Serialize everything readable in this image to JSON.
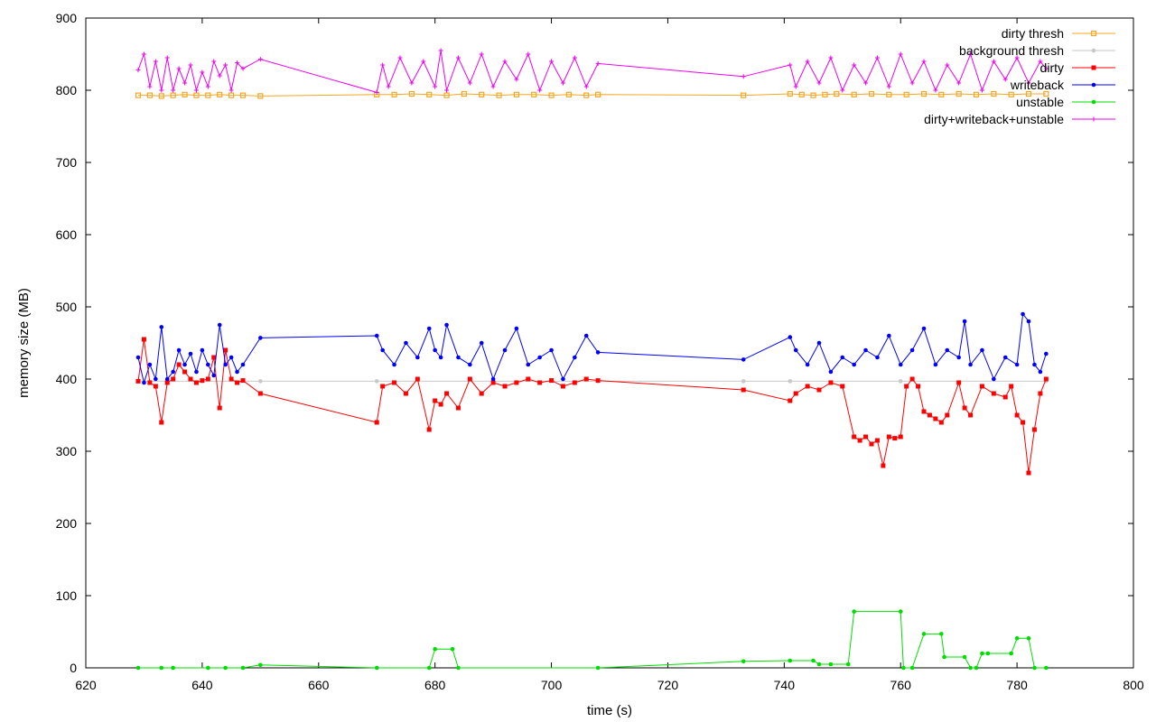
{
  "chart_data": {
    "type": "line",
    "xlabel": "time (s)",
    "ylabel": "memory size (MB)",
    "xlim": [
      620,
      800
    ],
    "ylim": [
      0,
      900
    ],
    "xticks": [
      620,
      640,
      660,
      680,
      700,
      720,
      740,
      760,
      780,
      800
    ],
    "yticks": [
      0,
      100,
      200,
      300,
      400,
      500,
      600,
      700,
      800,
      900
    ],
    "grid": false,
    "legend_position": "top-right",
    "series": [
      {
        "name": "dirty thresh",
        "color": "#f5a623",
        "marker": "square-open",
        "x": [
          629,
          631,
          633,
          635,
          637,
          639,
          641,
          643,
          645,
          647,
          650,
          670,
          673,
          676,
          679,
          682,
          685,
          688,
          691,
          694,
          697,
          700,
          703,
          706,
          708,
          733,
          741,
          743,
          745,
          747,
          749,
          752,
          755,
          758,
          761,
          764,
          767,
          770,
          773,
          776,
          779,
          782,
          785
        ],
        "y": [
          793,
          793,
          792,
          793,
          794,
          793,
          793,
          794,
          793,
          793,
          792,
          794,
          794,
          795,
          794,
          793,
          795,
          794,
          793,
          794,
          794,
          793,
          794,
          793,
          794,
          793,
          795,
          794,
          793,
          794,
          795,
          794,
          795,
          794,
          794,
          795,
          794,
          795,
          794,
          795,
          794,
          795,
          795
        ]
      },
      {
        "name": "background thresh",
        "color": "#c8c8c8",
        "marker": "dot",
        "x": [
          629,
          640,
          650,
          670,
          690,
          708,
          733,
          741,
          760,
          785
        ],
        "y": [
          397,
          397,
          397,
          397,
          397,
          397,
          397,
          397,
          397,
          397
        ]
      },
      {
        "name": "dirty",
        "color": "#ff0000",
        "marker": "square",
        "x": [
          629,
          630,
          631,
          632,
          633,
          634,
          635,
          636,
          637,
          638,
          639,
          640,
          641,
          642,
          643,
          644,
          645,
          646,
          647,
          650,
          670,
          671,
          673,
          675,
          677,
          679,
          680,
          681,
          682,
          684,
          686,
          688,
          690,
          692,
          694,
          696,
          698,
          700,
          702,
          704,
          706,
          708,
          733,
          741,
          742,
          744,
          746,
          748,
          750,
          752,
          753,
          754,
          755,
          756,
          757,
          758,
          759,
          760,
          761,
          762,
          763,
          764,
          765,
          766,
          767,
          768,
          770,
          771,
          772,
          774,
          776,
          778,
          779,
          780,
          781,
          782,
          783,
          784,
          785
        ],
        "y": [
          397,
          455,
          395,
          390,
          340,
          395,
          400,
          420,
          410,
          400,
          395,
          398,
          400,
          430,
          360,
          440,
          400,
          395,
          398,
          380,
          340,
          390,
          395,
          380,
          400,
          330,
          370,
          365,
          380,
          360,
          400,
          380,
          395,
          390,
          395,
          400,
          395,
          398,
          390,
          395,
          400,
          398,
          385,
          370,
          380,
          390,
          385,
          395,
          390,
          320,
          315,
          320,
          310,
          315,
          280,
          320,
          318,
          320,
          390,
          400,
          390,
          355,
          350,
          345,
          340,
          350,
          395,
          360,
          350,
          390,
          380,
          375,
          390,
          350,
          340,
          270,
          330,
          380,
          400
        ]
      },
      {
        "name": "writeback",
        "color": "#0000ff",
        "marker": "dot",
        "x": [
          629,
          630,
          631,
          632,
          633,
          634,
          635,
          636,
          637,
          638,
          639,
          640,
          641,
          642,
          643,
          644,
          645,
          646,
          647,
          650,
          670,
          671,
          673,
          675,
          677,
          679,
          680,
          681,
          682,
          684,
          686,
          688,
          690,
          692,
          694,
          696,
          698,
          700,
          702,
          704,
          706,
          708,
          733,
          741,
          742,
          744,
          746,
          748,
          750,
          752,
          754,
          756,
          758,
          760,
          762,
          764,
          766,
          768,
          770,
          771,
          772,
          774,
          776,
          778,
          780,
          781,
          782,
          783,
          784,
          785
        ],
        "y": [
          430,
          395,
          420,
          400,
          472,
          400,
          410,
          440,
          420,
          435,
          410,
          440,
          420,
          405,
          475,
          420,
          430,
          410,
          420,
          457,
          460,
          440,
          420,
          450,
          430,
          470,
          440,
          430,
          475,
          430,
          420,
          450,
          400,
          440,
          470,
          420,
          430,
          440,
          400,
          430,
          460,
          437,
          427,
          458,
          440,
          420,
          450,
          410,
          430,
          420,
          440,
          430,
          460,
          420,
          440,
          470,
          420,
          440,
          430,
          480,
          420,
          440,
          400,
          430,
          420,
          490,
          480,
          420,
          410,
          435
        ]
      },
      {
        "name": "unstable",
        "color": "#00dd00",
        "marker": "dot",
        "x": [
          629,
          633,
          635,
          641,
          644,
          647,
          650,
          670,
          679,
          680,
          683,
          684,
          708,
          733,
          741,
          745,
          746,
          748,
          751,
          752,
          760,
          760.5,
          762,
          764,
          767,
          767.5,
          771,
          772,
          773,
          774,
          775,
          779,
          780,
          782,
          783,
          785
        ],
        "y": [
          0,
          0,
          0,
          0,
          0,
          0,
          4,
          0,
          0,
          26,
          26,
          0,
          0,
          9,
          10,
          10,
          5,
          5,
          5,
          78,
          78,
          0,
          0,
          47,
          47,
          15,
          15,
          0,
          0,
          20,
          20,
          20,
          41,
          41,
          0,
          0
        ]
      },
      {
        "name": "dirty+writeback+unstable",
        "color": "#ee00ee",
        "marker": "plus",
        "x": [
          629,
          630,
          631,
          632,
          633,
          634,
          635,
          636,
          637,
          638,
          639,
          640,
          641,
          642,
          643,
          644,
          645,
          646,
          647,
          650,
          670,
          671,
          672,
          674,
          676,
          678,
          680,
          681,
          682,
          684,
          686,
          688,
          690,
          692,
          694,
          696,
          698,
          700,
          702,
          704,
          706,
          708,
          733,
          741,
          742,
          744,
          746,
          748,
          750,
          752,
          754,
          756,
          758,
          760,
          762,
          764,
          766,
          768,
          770,
          772,
          774,
          776,
          778,
          780,
          782,
          784,
          785
        ],
        "y": [
          828,
          850,
          805,
          840,
          800,
          845,
          800,
          830,
          810,
          835,
          800,
          825,
          805,
          840,
          820,
          835,
          800,
          838,
          830,
          843,
          797,
          835,
          805,
          845,
          810,
          840,
          805,
          855,
          800,
          845,
          810,
          850,
          805,
          840,
          815,
          850,
          800,
          840,
          810,
          845,
          805,
          837,
          819,
          835,
          805,
          840,
          810,
          845,
          800,
          835,
          810,
          845,
          805,
          850,
          810,
          840,
          800,
          835,
          810,
          850,
          800,
          840,
          815,
          845,
          810,
          840,
          830
        ]
      }
    ]
  }
}
